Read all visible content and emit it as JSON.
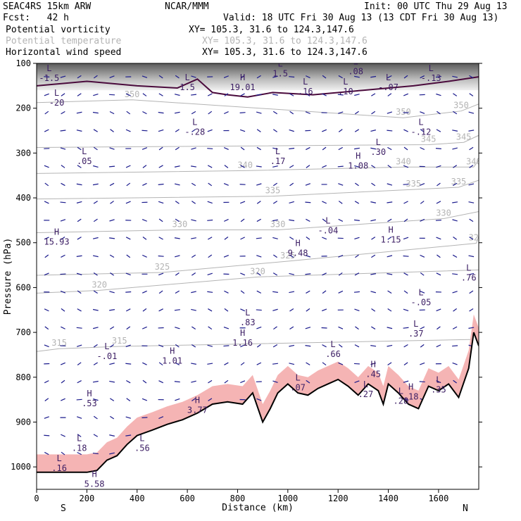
{
  "header": {
    "model": "SEAC4RS 15km ARW",
    "org": "NCAR/MMM",
    "init": "Init: 00 UTC Thu 29 Aug 13",
    "fcst": "Fcst:   42 h",
    "valid": "Valid: 18 UTC Fri 30 Aug 13 (13 CDT Fri 30 Aug 13)",
    "fields": [
      {
        "name": "Potential vorticity",
        "xy": "XY= 105.3, 31.6 to 124.3,147.6",
        "color": "#000000"
      },
      {
        "name": "Potential temperature",
        "xy": "XY= 105.3, 31.6 to 124.3,147.6",
        "color": "#b4b4b4"
      },
      {
        "name": "Horizontal wind speed",
        "xy": "XY= 105.3, 31.6 to 124.3,147.6",
        "color": "#000000"
      }
    ]
  },
  "chart_data": {
    "type": "cross-section",
    "xlabel": "Distance (km)",
    "ylabel": "Pressure (hPa)",
    "xlim": [
      0,
      1760
    ],
    "ylim": [
      1050,
      100
    ],
    "x_ticks": [
      0,
      200,
      400,
      600,
      800,
      1000,
      1200,
      1400,
      1600
    ],
    "y_ticks": [
      100,
      200,
      300,
      400,
      500,
      600,
      700,
      800,
      900,
      1000
    ],
    "end_labels": {
      "left": "S",
      "right": "N"
    },
    "colors": {
      "terrain": "#000000",
      "pv_fill": "#f5b4b4",
      "wind": "#1a1a8c",
      "theta": "#b4b4b4",
      "tropopause": "#4a0a3c",
      "hl_label": "#3c1e64"
    },
    "terrain": [
      [
        0,
        1012
      ],
      [
        60,
        1012
      ],
      [
        200,
        1012
      ],
      [
        240,
        1008
      ],
      [
        280,
        985
      ],
      [
        320,
        975
      ],
      [
        360,
        950
      ],
      [
        400,
        930
      ],
      [
        460,
        918
      ],
      [
        520,
        905
      ],
      [
        580,
        895
      ],
      [
        640,
        880
      ],
      [
        700,
        860
      ],
      [
        760,
        855
      ],
      [
        820,
        860
      ],
      [
        860,
        835
      ],
      [
        900,
        900
      ],
      [
        930,
        870
      ],
      [
        960,
        835
      ],
      [
        1000,
        815
      ],
      [
        1040,
        835
      ],
      [
        1080,
        840
      ],
      [
        1120,
        825
      ],
      [
        1160,
        815
      ],
      [
        1200,
        805
      ],
      [
        1240,
        820
      ],
      [
        1280,
        840
      ],
      [
        1320,
        815
      ],
      [
        1360,
        830
      ],
      [
        1380,
        860
      ],
      [
        1400,
        815
      ],
      [
        1440,
        835
      ],
      [
        1480,
        860
      ],
      [
        1520,
        870
      ],
      [
        1560,
        820
      ],
      [
        1600,
        830
      ],
      [
        1640,
        815
      ],
      [
        1680,
        845
      ],
      [
        1720,
        780
      ],
      [
        1740,
        700
      ],
      [
        1760,
        730
      ]
    ],
    "theta_isentropes": [
      {
        "value": "315",
        "labels": [
          [
            90,
            730
          ],
          [
            330,
            725
          ]
        ]
      },
      {
        "value": "320",
        "labels": [
          [
            250,
            600
          ],
          [
            880,
            570
          ]
        ]
      },
      {
        "value": "325",
        "labels": [
          [
            500,
            560
          ],
          [
            1000,
            535
          ],
          [
            1750,
            495
          ]
        ]
      },
      {
        "value": "330",
        "labels": [
          [
            570,
            465
          ],
          [
            960,
            465
          ],
          [
            1620,
            440
          ]
        ]
      },
      {
        "value": "335",
        "labels": [
          [
            940,
            390
          ],
          [
            1500,
            375
          ],
          [
            1680,
            370
          ]
        ]
      },
      {
        "value": "340",
        "labels": [
          [
            830,
            333
          ],
          [
            1460,
            325
          ],
          [
            1740,
            325
          ]
        ]
      },
      {
        "value": "345",
        "labels": [
          [
            1560,
            275
          ],
          [
            1700,
            270
          ]
        ]
      },
      {
        "value": "350",
        "labels": [
          [
            380,
            175
          ],
          [
            1460,
            215
          ],
          [
            1690,
            200
          ]
        ]
      }
    ],
    "pv_labels": [
      {
        "type": "L",
        "value": "-1.5",
        "x": 50,
        "y": 130
      },
      {
        "type": "L",
        "value": "-20",
        "x": 80,
        "y": 185
      },
      {
        "type": "L",
        "value": ".05",
        "x": 190,
        "y": 315
      },
      {
        "type": "H",
        "value": "15.93",
        "x": 80,
        "y": 495
      },
      {
        "type": "L",
        "value": "-.01",
        "x": 280,
        "y": 750
      },
      {
        "type": "H",
        "value": ".53",
        "x": 210,
        "y": 855
      },
      {
        "type": "L",
        "value": ".18",
        "x": 170,
        "y": 955
      },
      {
        "type": "L",
        "value": ".16",
        "x": 90,
        "y": 1000
      },
      {
        "type": "H",
        "value": "5.58",
        "x": 230,
        "y": 1035
      },
      {
        "type": "L",
        "value": "1.5",
        "x": 600,
        "y": 150
      },
      {
        "type": "H",
        "value": "19.01",
        "x": 820,
        "y": 150
      },
      {
        "type": "L",
        "value": "-.28",
        "x": 630,
        "y": 250
      },
      {
        "type": "L",
        "value": ".17",
        "x": 960,
        "y": 315
      },
      {
        "type": "L",
        "value": ".16",
        "x": 1070,
        "y": 160
      },
      {
        "type": "L",
        "value": ".10",
        "x": 1230,
        "y": 160
      },
      {
        "type": "L",
        "value": "-.07",
        "x": 1400,
        "y": 150
      },
      {
        "type": "L",
        "value": "-.13",
        "x": 1570,
        "y": 130
      },
      {
        "type": "L",
        "value": ".08",
        "x": 1270,
        "y": 115
      },
      {
        "type": "L",
        "value": "-.12",
        "x": 1530,
        "y": 250
      },
      {
        "type": "L",
        "value": ".30",
        "x": 1360,
        "y": 295
      },
      {
        "type": "H",
        "value": "1.08",
        "x": 1280,
        "y": 325
      },
      {
        "type": "L",
        "value": "-.04",
        "x": 1160,
        "y": 470
      },
      {
        "type": "H",
        "value": "9.48",
        "x": 1040,
        "y": 520
      },
      {
        "type": "H",
        "value": "1.15",
        "x": 1410,
        "y": 490
      },
      {
        "type": "L",
        "value": "-.05",
        "x": 1530,
        "y": 630
      },
      {
        "type": "L",
        "value": ".76",
        "x": 1720,
        "y": 575
      },
      {
        "type": "L",
        "value": ".37",
        "x": 1510,
        "y": 700
      },
      {
        "type": "L",
        "value": ".83",
        "x": 840,
        "y": 675
      },
      {
        "type": "H",
        "value": "1.16",
        "x": 820,
        "y": 720
      },
      {
        "type": "L",
        "value": ".66",
        "x": 1180,
        "y": 745
      },
      {
        "type": "H",
        "value": "1.01",
        "x": 540,
        "y": 760
      },
      {
        "type": "H",
        "value": ".45",
        "x": 1340,
        "y": 790
      },
      {
        "type": "L",
        "value": ".07",
        "x": 1040,
        "y": 820
      },
      {
        "type": "L",
        "value": ".27",
        "x": 1310,
        "y": 835
      },
      {
        "type": "L",
        "value": ".28",
        "x": 1450,
        "y": 850
      },
      {
        "type": "H",
        "value": ".18",
        "x": 1490,
        "y": 840
      },
      {
        "type": "L",
        "value": ".35",
        "x": 1600,
        "y": 825
      },
      {
        "type": "H",
        "value": "3.77",
        "x": 640,
        "y": 870
      },
      {
        "type": "L",
        "value": ".56",
        "x": 420,
        "y": 955
      },
      {
        "type": "L",
        "value": "1.5",
        "x": 970,
        "y": 120
      }
    ]
  }
}
